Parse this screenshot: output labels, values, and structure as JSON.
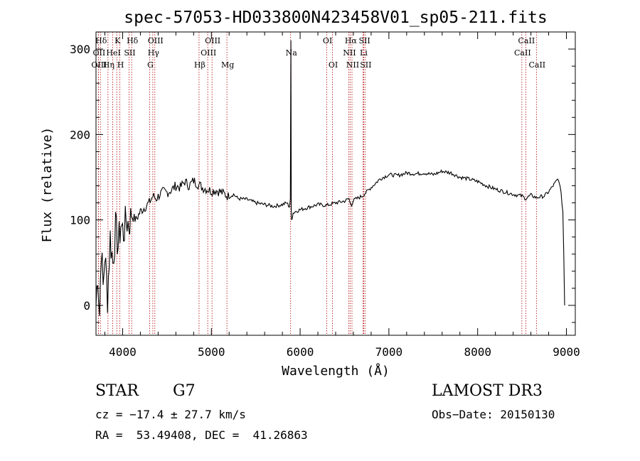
{
  "chart_data": {
    "type": "line",
    "title": "spec-57053-HD033800N423458V01_sp05-211.fits",
    "xlabel": "Wavelength (Å)",
    "ylabel": "Flux (relative)",
    "xlim": [
      3700,
      9100
    ],
    "ylim": [
      -35,
      320
    ],
    "x_ticks": [
      4000,
      5000,
      6000,
      7000,
      8000,
      9000
    ],
    "y_ticks": [
      0,
      100,
      200,
      300
    ],
    "series": [
      {
        "name": "flux",
        "x": [
          3700,
          3720,
          3740,
          3760,
          3780,
          3800,
          3830,
          3860,
          3890,
          3920,
          3950,
          3980,
          4010,
          4040,
          4070,
          4100,
          4150,
          4200,
          4250,
          4300,
          4340,
          4380,
          4420,
          4460,
          4500,
          4550,
          4600,
          4650,
          4700,
          4750,
          4800,
          4850,
          4900,
          4950,
          5000,
          5050,
          5100,
          5150,
          5200,
          5250,
          5300,
          5400,
          5500,
          5600,
          5700,
          5800,
          5850,
          5880,
          5890,
          5896,
          5900,
          5905,
          5920,
          5950,
          6000,
          6100,
          6200,
          6300,
          6400,
          6500,
          6550,
          6563,
          6580,
          6600,
          6700,
          6800,
          6900,
          7000,
          7100,
          7200,
          7300,
          7400,
          7500,
          7600,
          7700,
          7800,
          7900,
          8000,
          8100,
          8200,
          8300,
          8400,
          8500,
          8542,
          8600,
          8662,
          8700,
          8750,
          8800,
          8850,
          8900,
          8920,
          8940,
          8960,
          8970,
          8980
        ],
        "values": [
          0,
          40,
          -10,
          70,
          20,
          60,
          10,
          80,
          50,
          90,
          70,
          95,
          85,
          100,
          95,
          105,
          100,
          110,
          115,
          120,
          128,
          125,
          130,
          133,
          132,
          135,
          140,
          138,
          145,
          140,
          146,
          142,
          138,
          136,
          134,
          135,
          133,
          130,
          127,
          130,
          125,
          124,
          120,
          118,
          116,
          118,
          120,
          115,
          125,
          310,
          105,
          100,
          108,
          110,
          112,
          115,
          118,
          117,
          120,
          122,
          125,
          120,
          118,
          123,
          128,
          138,
          148,
          153,
          152,
          155,
          154,
          155,
          153,
          157,
          155,
          150,
          148,
          145,
          140,
          136,
          133,
          130,
          128,
          125,
          129,
          126,
          127,
          128,
          133,
          140,
          147,
          145,
          130,
          110,
          60,
          0
        ]
      }
    ],
    "lines": [
      {
        "label": "Hδ",
        "x": 3750,
        "row": 1
      },
      {
        "label": "OII",
        "x": 3727,
        "row": 2
      },
      {
        "label": "OIII",
        "x": 3727,
        "row": 3
      },
      {
        "label": "K",
        "x": 3934,
        "row": 1
      },
      {
        "label": "HeI",
        "x": 3889,
        "row": 2
      },
      {
        "label": "Hη",
        "x": 3835,
        "row": 3
      },
      {
        "label": "Hδ",
        "x": 4102,
        "row": 1
      },
      {
        "label": "SII",
        "x": 4072,
        "row": 2
      },
      {
        "label": "H",
        "x": 3969,
        "row": 3
      },
      {
        "label": "OIII",
        "x": 4363,
        "row": 1
      },
      {
        "label": "Hγ",
        "x": 4340,
        "row": 2
      },
      {
        "label": "G",
        "x": 4304,
        "row": 3
      },
      {
        "label": "OIII",
        "x": 5007,
        "row": 1
      },
      {
        "label": "OIII",
        "x": 4959,
        "row": 2
      },
      {
        "label": "Hβ",
        "x": 4861,
        "row": 3
      },
      {
        "label": "Mg",
        "x": 5175,
        "row": 3
      },
      {
        "label": "Na",
        "x": 5893,
        "row": 2
      },
      {
        "label": "OI",
        "x": 6300,
        "row": 1
      },
      {
        "label": "OI",
        "x": 6364,
        "row": 3
      },
      {
        "label": "Hα",
        "x": 6563,
        "row": 1
      },
      {
        "label": "SII",
        "x": 6717,
        "row": 1
      },
      {
        "label": "NII",
        "x": 6548,
        "row": 2
      },
      {
        "label": "Li",
        "x": 6708,
        "row": 2
      },
      {
        "label": "NII",
        "x": 6584,
        "row": 3
      },
      {
        "label": "SII",
        "x": 6731,
        "row": 3
      },
      {
        "label": "CaII",
        "x": 8542,
        "row": 1
      },
      {
        "label": "CaII",
        "x": 8498,
        "row": 2
      },
      {
        "label": "CaII",
        "x": 8662,
        "row": 3
      }
    ]
  },
  "info": {
    "class": "STAR",
    "subclass": "G7",
    "survey": "LAMOST DR3",
    "cz": "cz = −17.4 ± 27.7 km/s",
    "obs_date": "Obs−Date: 20150130",
    "coords": "RA =  53.49408, DEC =  41.26863"
  },
  "colors": {
    "line_marker": "#b00000",
    "spectrum": "#000000"
  }
}
